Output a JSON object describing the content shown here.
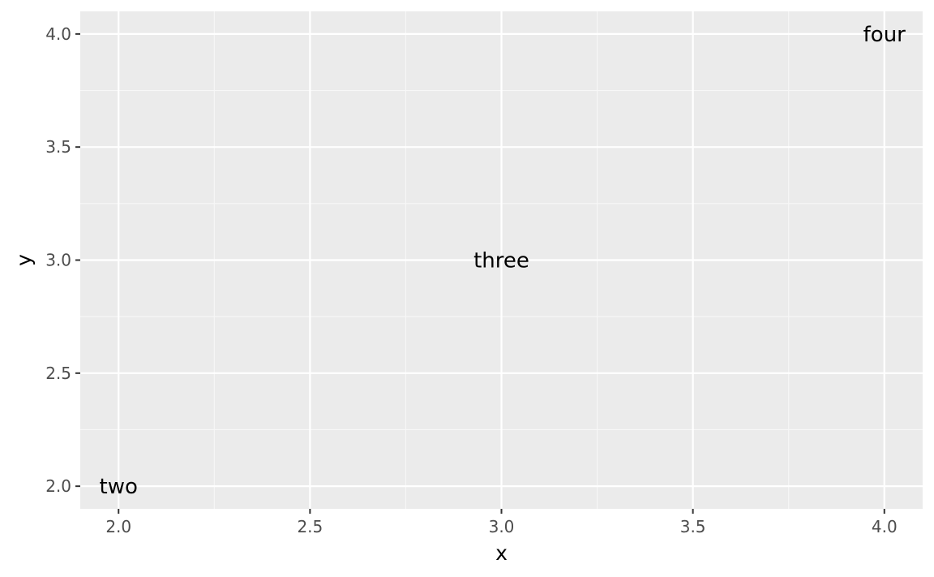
{
  "chart_data": {
    "type": "scatter",
    "title": "",
    "xlabel": "x",
    "ylabel": "y",
    "xlim": [
      1.9,
      4.1
    ],
    "ylim": [
      1.9,
      4.1
    ],
    "x_ticks": [
      2.0,
      2.5,
      3.0,
      3.5,
      4.0
    ],
    "y_ticks": [
      2.0,
      2.5,
      3.0,
      3.5,
      4.0
    ],
    "x_tick_labels": [
      "2.0",
      "2.5",
      "3.0",
      "3.5",
      "4.0"
    ],
    "y_tick_labels": [
      "2.0",
      "2.5",
      "3.0",
      "3.5",
      "4.0"
    ],
    "grid": true,
    "points": [
      {
        "x": 2,
        "y": 2,
        "label": "two"
      },
      {
        "x": 3,
        "y": 3,
        "label": "three"
      },
      {
        "x": 4,
        "y": 4,
        "label": "four"
      }
    ],
    "colors": {
      "panel_background": "#ebebeb",
      "grid_major": "#ffffff",
      "grid_minor": "#f7f7f7",
      "tick_text": "#4d4d4d",
      "tick_mark": "#333333",
      "label_text": "#000000"
    }
  }
}
